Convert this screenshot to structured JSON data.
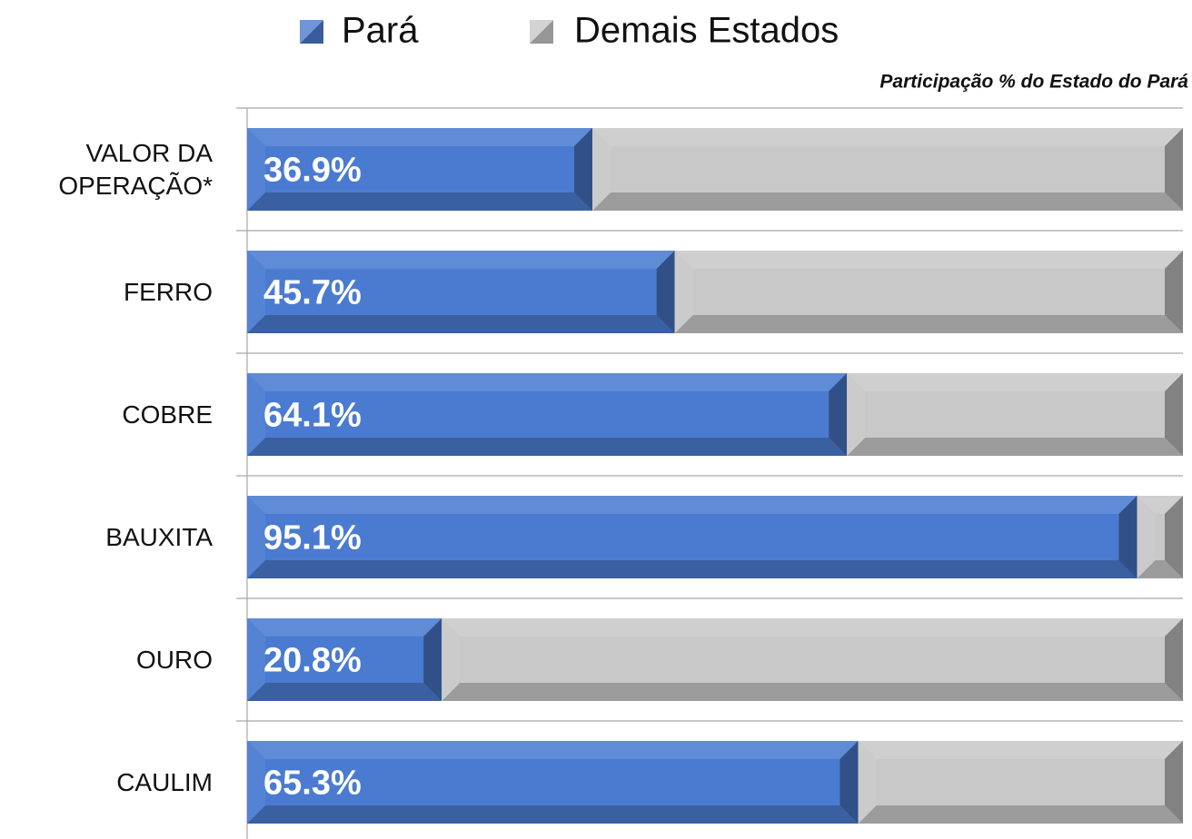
{
  "chart_data": {
    "type": "stacked-bar",
    "orientation": "horizontal",
    "subtitle": "Participação % do Estado do Pará",
    "categories": [
      "VALOR DA OPERAÇÃO*",
      "FERRO",
      "COBRE",
      "BAUXITA",
      "OURO",
      "CAULIM"
    ],
    "series": [
      {
        "name": "Pará",
        "color": "#4a7bd0",
        "values": [
          36.9,
          45.7,
          64.1,
          95.1,
          20.8,
          65.3
        ],
        "value_labels": [
          "36.9%",
          "45.7%",
          "64.1%",
          "95.1%",
          "20.8%",
          "65.3%"
        ]
      },
      {
        "name": "Demais Estados",
        "color": "#c8c8c8",
        "values": [
          63.1,
          54.3,
          35.9,
          4.9,
          79.2,
          34.7
        ]
      }
    ],
    "xlim": [
      0,
      100
    ]
  }
}
